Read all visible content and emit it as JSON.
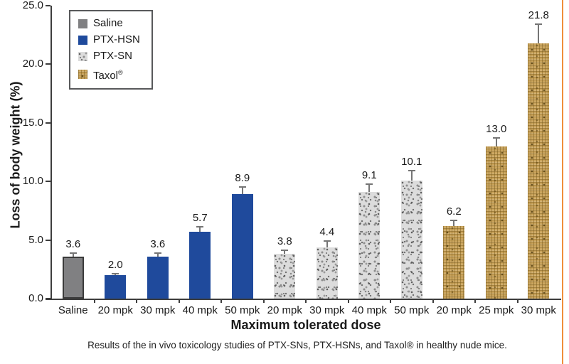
{
  "figure": {
    "caption": "Results of the in vivo toxicology studies of PTX-SNs, PTX-HSNs, and Taxol® in healthy nude mice."
  },
  "chart_data": {
    "type": "bar",
    "title": "",
    "xlabel": "Maximum tolerated dose",
    "ylabel": "Loss of body weight (%)",
    "ylim": [
      0,
      25
    ],
    "yticks": [
      "0.0",
      "5.0",
      "10.0",
      "15.0",
      "20.0",
      "25.0"
    ],
    "grid": false,
    "legend_position": "top-left",
    "legend": [
      {
        "label": "Saline",
        "series": "saline"
      },
      {
        "label": "PTX-HSN",
        "series": "ptx-hsn"
      },
      {
        "label": "PTX-SN",
        "series": "ptx-sn"
      },
      {
        "label": "Taxol®",
        "series": "taxol"
      }
    ],
    "bars": [
      {
        "category": "Saline",
        "series": "saline",
        "value": 3.6,
        "error": 0.3,
        "label": "3.6"
      },
      {
        "category": "20 mpk",
        "series": "ptx-hsn",
        "value": 2.0,
        "error": 0.15,
        "label": "2.0"
      },
      {
        "category": "30 mpk",
        "series": "ptx-hsn",
        "value": 3.6,
        "error": 0.3,
        "label": "3.6"
      },
      {
        "category": "40 mpk",
        "series": "ptx-hsn",
        "value": 5.7,
        "error": 0.45,
        "label": "5.7"
      },
      {
        "category": "50 mpk",
        "series": "ptx-hsn",
        "value": 8.9,
        "error": 0.6,
        "label": "8.9"
      },
      {
        "category": "20 mpk",
        "series": "ptx-sn",
        "value": 3.8,
        "error": 0.35,
        "label": "3.8"
      },
      {
        "category": "30 mpk",
        "series": "ptx-sn",
        "value": 4.4,
        "error": 0.5,
        "label": "4.4"
      },
      {
        "category": "40 mpk",
        "series": "ptx-sn",
        "value": 9.1,
        "error": 0.65,
        "label": "9.1"
      },
      {
        "category": "50 mpk",
        "series": "ptx-sn",
        "value": 10.1,
        "error": 0.8,
        "label": "10.1"
      },
      {
        "category": "20 mpk",
        "series": "taxol",
        "value": 6.2,
        "error": 0.5,
        "label": "6.2"
      },
      {
        "category": "25 mpk",
        "series": "taxol",
        "value": 13.0,
        "error": 0.7,
        "label": "13.0"
      },
      {
        "category": "30 mpk",
        "series": "taxol",
        "value": 21.8,
        "error": 1.6,
        "label": "21.8"
      }
    ]
  },
  "colors": {
    "accent_border": "#ef8f3b",
    "axis": "#3d3d3d",
    "text": "#1a1a1a",
    "error_bar": "#757575",
    "saline": "#808082",
    "saline_border": "#3a3a3a",
    "ptx_hsn": "#1f4a9c",
    "ptx_sn_base": "#dcdcdc",
    "ptx_sn_speck": "#5f5f5f",
    "taxol_base": "#c9a35b",
    "taxol_weave": "#7a5c1c"
  }
}
